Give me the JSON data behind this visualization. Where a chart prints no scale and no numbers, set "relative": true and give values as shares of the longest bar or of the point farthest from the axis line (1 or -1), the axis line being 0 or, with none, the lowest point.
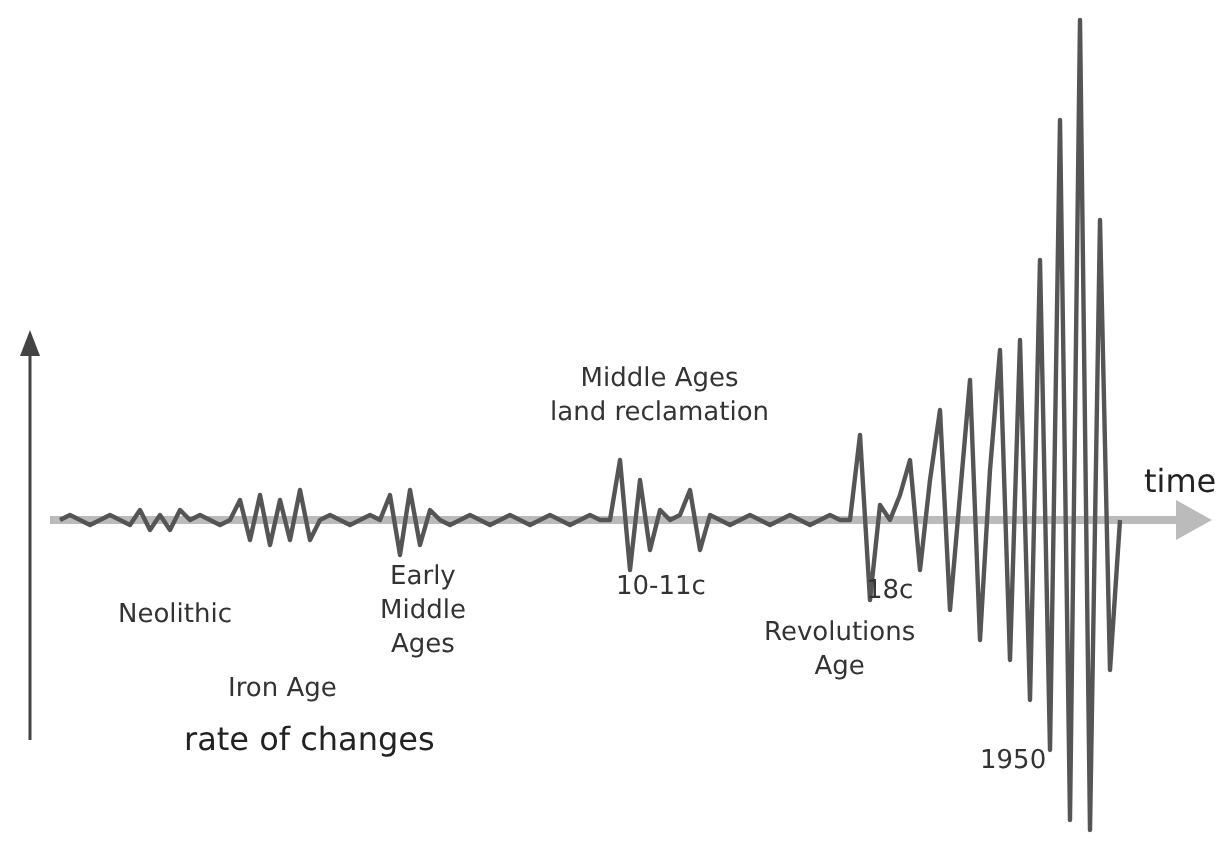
{
  "chart_data": {
    "type": "line",
    "relative": true,
    "xlabel": "time",
    "ylabel": "rate of changes",
    "grid": false,
    "marker": "none",
    "line_style": "solid",
    "categories": [
      null,
      null,
      null,
      null,
      null,
      null,
      null,
      null,
      null,
      null,
      null,
      null,
      null,
      null,
      null,
      null,
      null,
      null,
      null,
      null,
      null,
      null,
      null,
      null,
      null,
      null,
      null,
      null,
      null,
      null,
      null,
      null,
      null,
      null,
      null,
      null,
      null,
      null,
      null,
      null,
      null,
      null,
      null,
      null,
      null,
      null,
      null,
      null,
      null,
      null,
      null,
      null,
      null,
      null,
      null,
      null,
      null,
      null,
      null,
      null,
      null,
      null,
      null,
      null,
      null,
      null,
      null,
      null,
      null,
      null,
      null,
      null,
      null,
      null,
      null,
      null,
      null,
      null,
      null,
      null,
      null,
      null,
      null,
      null,
      null,
      null,
      null,
      null,
      null,
      null,
      null,
      null,
      null,
      null,
      null,
      null,
      null,
      null,
      null,
      null,
      null,
      null,
      null,
      null,
      null,
      null,
      null
    ],
    "series": [
      {
        "color": "#555555",
        "values": [
          0,
          0.01,
          0,
          -0.01,
          0,
          0.01,
          0,
          -0.01,
          0.02,
          -0.02,
          0.01,
          -0.02,
          0.02,
          0,
          0.01,
          0,
          -0.01,
          0,
          0.04,
          -0.04,
          0.05,
          -0.05,
          0.04,
          -0.04,
          0.06,
          -0.04,
          0,
          0.01,
          0,
          -0.01,
          0,
          0.01,
          0,
          0.05,
          -0.07,
          0.06,
          -0.05,
          0.02,
          0,
          -0.01,
          0,
          0.01,
          0,
          -0.01,
          0,
          0.01,
          0,
          -0.01,
          0,
          0.01,
          0,
          -0.01,
          0,
          0.01,
          0,
          0,
          0.12,
          -0.1,
          0.08,
          -0.06,
          0.02,
          0,
          0.01,
          0.06,
          -0.06,
          0.01,
          0,
          -0.01,
          0,
          0.01,
          0,
          -0.01,
          0,
          0.01,
          0,
          -0.01,
          0,
          0.01,
          0,
          0,
          0.17,
          -0.16,
          0.03,
          0,
          0.05,
          0.12,
          -0.1,
          0.08,
          0.22,
          -0.18,
          0.05,
          0.28,
          -0.24,
          0.1,
          0.34,
          -0.28,
          0.36,
          -0.36,
          0.52,
          -0.46,
          0.8,
          -0.6,
          1,
          -0.62,
          0.6,
          -0.3,
          0
        ]
      }
    ],
    "annotations": [
      "Neolithic",
      "Iron Age",
      "Early\nMiddle\nAges",
      "Middle Ages\nland reclamation",
      "10-11c",
      "18c",
      "Revolutions\nAge",
      "1950"
    ]
  }
}
